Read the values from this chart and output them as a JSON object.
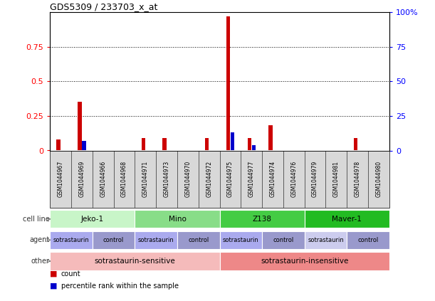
{
  "title": "GDS5309 / 233703_x_at",
  "samples": [
    "GSM1044967",
    "GSM1044969",
    "GSM1044966",
    "GSM1044968",
    "GSM1044971",
    "GSM1044973",
    "GSM1044970",
    "GSM1044972",
    "GSM1044975",
    "GSM1044977",
    "GSM1044974",
    "GSM1044976",
    "GSM1044979",
    "GSM1044981",
    "GSM1044978",
    "GSM1044980"
  ],
  "count_values": [
    0.08,
    0.35,
    0.0,
    0.0,
    0.09,
    0.09,
    0.0,
    0.09,
    0.97,
    0.09,
    0.18,
    0.0,
    0.0,
    0.0,
    0.09,
    0.0
  ],
  "percentile_values": [
    0.0,
    0.07,
    0.0,
    0.0,
    0.0,
    0.0,
    0.0,
    0.0,
    0.13,
    0.04,
    0.0,
    0.0,
    0.0,
    0.0,
    0.0,
    0.0
  ],
  "cell_lines": [
    {
      "label": "Jeko-1",
      "start": 0,
      "end": 3,
      "color": "#c8f5c8"
    },
    {
      "label": "Mino",
      "start": 4,
      "end": 7,
      "color": "#88dd88"
    },
    {
      "label": "Z138",
      "start": 8,
      "end": 11,
      "color": "#44cc44"
    },
    {
      "label": "Maver-1",
      "start": 12,
      "end": 15,
      "color": "#22bb22"
    }
  ],
  "agents": [
    {
      "label": "sotrastaurin",
      "start": 0,
      "end": 1,
      "color": "#aaaaee"
    },
    {
      "label": "control",
      "start": 2,
      "end": 3,
      "color": "#9999cc"
    },
    {
      "label": "sotrastaurin",
      "start": 4,
      "end": 5,
      "color": "#aaaaee"
    },
    {
      "label": "control",
      "start": 6,
      "end": 7,
      "color": "#9999cc"
    },
    {
      "label": "sotrastaurin",
      "start": 8,
      "end": 9,
      "color": "#aaaaee"
    },
    {
      "label": "control",
      "start": 10,
      "end": 11,
      "color": "#9999cc"
    },
    {
      "label": "sotrastaurin",
      "start": 12,
      "end": 13,
      "color": "#ccccee"
    },
    {
      "label": "control",
      "start": 14,
      "end": 15,
      "color": "#9999cc"
    }
  ],
  "others": [
    {
      "label": "sotrastaurin-sensitive",
      "start": 0,
      "end": 7,
      "color": "#f5bbbb"
    },
    {
      "label": "sotrastaurin-insensitive",
      "start": 8,
      "end": 15,
      "color": "#ee8888"
    }
  ],
  "ylim": [
    0,
    1.0
  ],
  "yticks_left": [
    0,
    0.25,
    0.5,
    0.75
  ],
  "yticks_right": [
    0,
    25,
    50,
    75,
    100
  ],
  "count_color": "#cc0000",
  "percentile_color": "#0000cc",
  "sample_box_color": "#d8d8d8",
  "row_label_color": "#333333"
}
